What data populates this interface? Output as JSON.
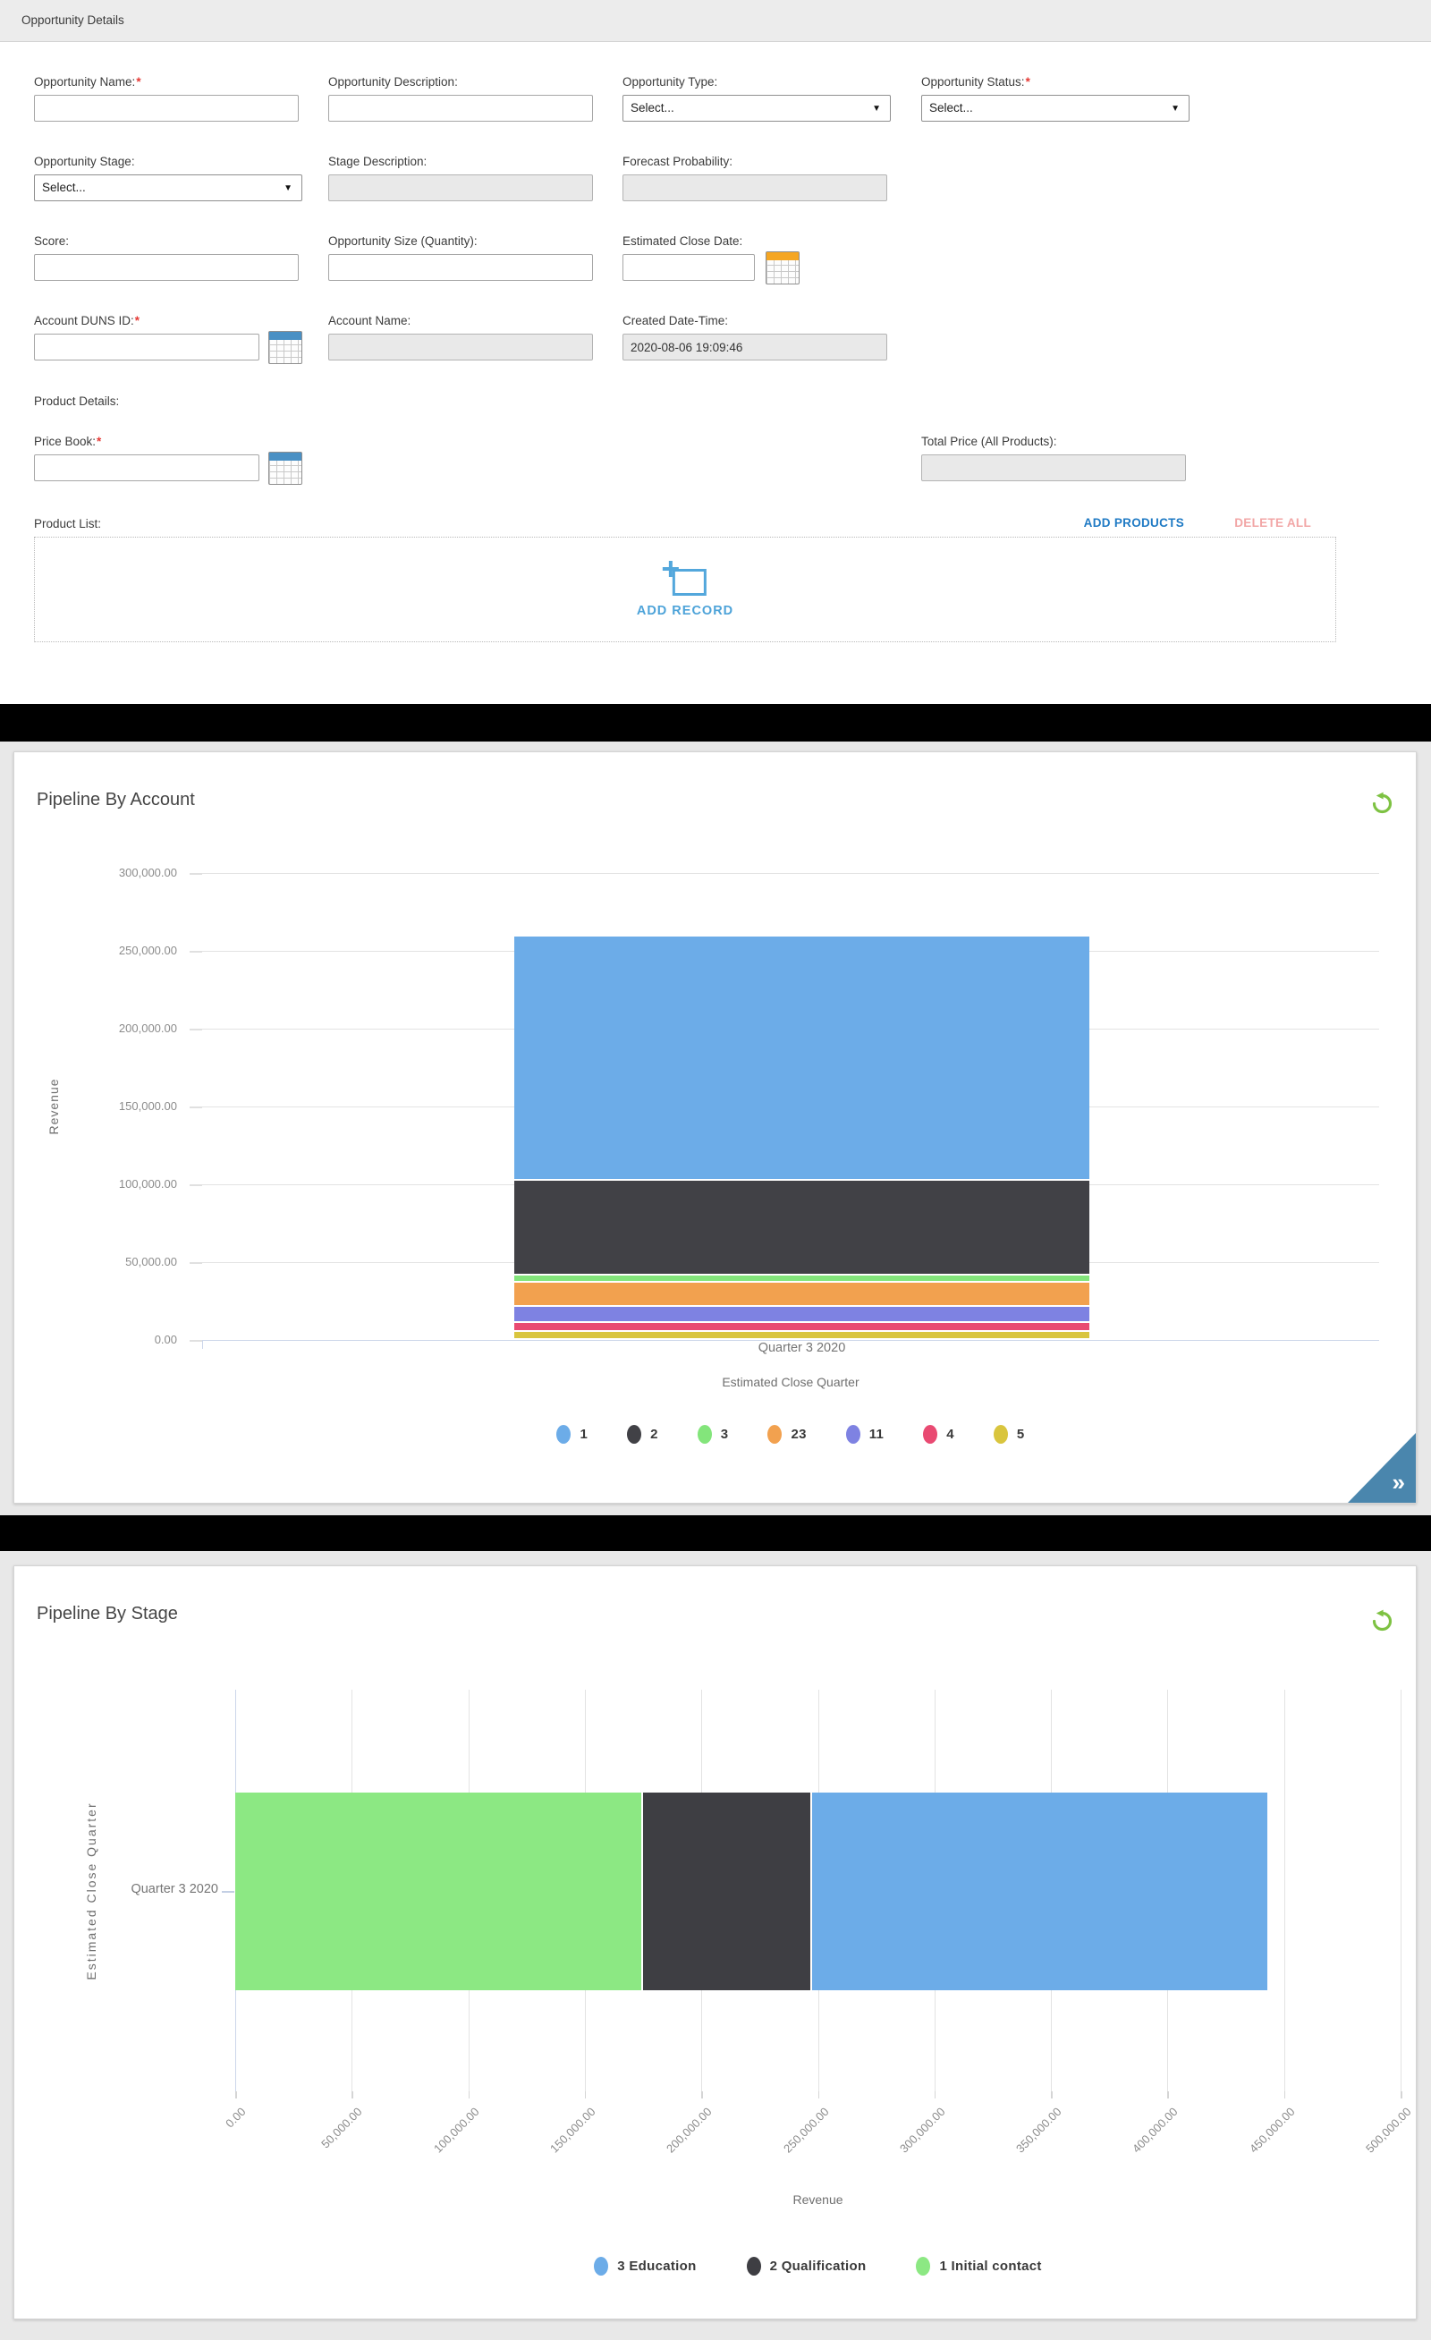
{
  "form": {
    "header": "Opportunity Details",
    "required_marker": "*",
    "fields": {
      "opportunity_name": {
        "label": "Opportunity Name:",
        "required": true,
        "value": ""
      },
      "opportunity_description": {
        "label": "Opportunity Description:",
        "value": ""
      },
      "opportunity_type": {
        "label": "Opportunity Type:",
        "value": "Select..."
      },
      "opportunity_status": {
        "label": "Opportunity Status:",
        "required": true,
        "value": "Select..."
      },
      "opportunity_stage": {
        "label": "Opportunity Stage:",
        "value": "Select..."
      },
      "stage_description": {
        "label": "Stage Description:",
        "value": "",
        "disabled": true
      },
      "forecast_probability": {
        "label": "Forecast Probability:",
        "value": "",
        "disabled": true
      },
      "score": {
        "label": "Score:",
        "value": ""
      },
      "opportunity_size": {
        "label": "Opportunity Size (Quantity):",
        "value": ""
      },
      "estimated_close_date": {
        "label": "Estimated Close Date:",
        "value": ""
      },
      "account_duns_id": {
        "label": "Account DUNS ID:",
        "required": true,
        "value": ""
      },
      "account_name": {
        "label": "Account Name:",
        "value": "",
        "disabled": true
      },
      "created_date_time": {
        "label": "Created Date-Time:",
        "value": "2020-08-06 19:09:46",
        "disabled": true
      },
      "product_details": {
        "label": "Product Details:"
      },
      "price_book": {
        "label": "Price Book:",
        "required": true,
        "value": ""
      },
      "total_price": {
        "label": "Total Price (All Products):",
        "value": "",
        "disabled": true
      },
      "product_list": {
        "label": "Product List:"
      }
    },
    "buttons": {
      "add_products": "ADD PRODUCTS",
      "delete_all": "DELETE ALL",
      "add_record": "ADD RECORD"
    }
  },
  "chart_data": [
    {
      "type": "bar",
      "stacked": true,
      "orientation": "vertical",
      "title": "Pipeline By Account",
      "xlabel": "Estimated Close Quarter",
      "ylabel": "Revenue",
      "categories": [
        "Quarter 3 2020"
      ],
      "series": [
        {
          "name": "1",
          "color": "#6CACE8",
          "value": 157000
        },
        {
          "name": "2",
          "color": "#414146",
          "value": 61000
        },
        {
          "name": "3",
          "color": "#83E57B",
          "value": 4600
        },
        {
          "name": "23",
          "color": "#F2A14F",
          "value": 15500
        },
        {
          "name": "11",
          "color": "#7E82E2",
          "value": 10300
        },
        {
          "name": "4",
          "color": "#E94A72",
          "value": 6000
        },
        {
          "name": "5",
          "color": "#D9C53E",
          "value": 4900
        }
      ],
      "stack_order_bottom_to_top": [
        "5",
        "4",
        "11",
        "23",
        "3",
        "2",
        "1"
      ],
      "ylim": [
        0,
        300000
      ],
      "y_tick_step": 50000,
      "y_tick_labels": [
        "300,000.00",
        "250,000.00",
        "200,000.00",
        "150,000.00",
        "100,000.00",
        "50,000.00",
        "0.00"
      ],
      "grid": true,
      "legend_position": "bottom",
      "refresh_icon_color": "#7EC243",
      "expand_corner_color": "#4A86AD"
    },
    {
      "type": "bar",
      "stacked": true,
      "orientation": "horizontal",
      "title": "Pipeline By Stage",
      "xlabel": "Revenue",
      "ylabel": "Estimated Close Quarter",
      "categories": [
        "Quarter 3 2020"
      ],
      "series": [
        {
          "name": "3 Education",
          "color": "#6CACE8",
          "value": 196000
        },
        {
          "name": "2 Qualification",
          "color": "#3E3E43",
          "value": 72500
        },
        {
          "name": "1 Initial contact",
          "color": "#8CE883",
          "value": 175000
        }
      ],
      "stack_order_left_to_right": [
        "1 Initial contact",
        "2 Qualification",
        "3 Education"
      ],
      "xlim": [
        0,
        500000
      ],
      "x_tick_step": 50000,
      "x_tick_labels": [
        "0.00",
        "50,000.00",
        "100,000.00",
        "150,000.00",
        "200,000.00",
        "250,000.00",
        "300,000.00",
        "350,000.00",
        "400,000.00",
        "450,000.00",
        "500,000.00"
      ],
      "grid": true,
      "legend_position": "bottom",
      "refresh_icon_color": "#7EC243"
    }
  ]
}
